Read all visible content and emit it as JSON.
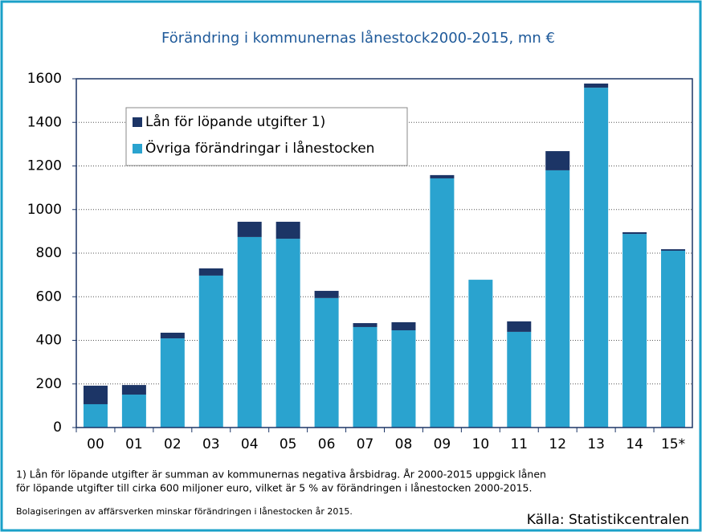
{
  "chart_data": {
    "type": "stacked_bar",
    "title": "Förändring i kommunernas lånestock2000-2015, mn €",
    "categories": [
      "00",
      "01",
      "02",
      "03",
      "04",
      "05",
      "06",
      "07",
      "08",
      "09",
      "10",
      "11",
      "12",
      "13",
      "14",
      "15*"
    ],
    "series": [
      {
        "name": "Lån för löpande utgifter 1)",
        "color": "#1c3566",
        "values": [
          85,
          44,
          26,
          33,
          70,
          78,
          33,
          18,
          37,
          15,
          0,
          48,
          88,
          19,
          8,
          7
        ]
      },
      {
        "name": "Övriga förändringar i lånestocken",
        "color": "#2aa3cf",
        "values": [
          107,
          151,
          409,
          697,
          874,
          866,
          594,
          461,
          446,
          1143,
          678,
          439,
          1180,
          1559,
          888,
          811
        ]
      }
    ],
    "ylim": [
      0,
      1600
    ],
    "yticks": [
      0,
      200,
      400,
      600,
      800,
      1000,
      1200,
      1400,
      1600
    ],
    "grid": true,
    "legend": "upper left",
    "notes": [
      "1) Lån för löpande utgifter är summan av kommunernas negativa årsbidrag. År 2000-2015 uppgick lånen",
      "för löpande utgifter till cirka 600 miljoner euro, vilket är 5 % av förändringen i lånestocken 2000-2015.",
      "Bolagiseringen av affärsverken minskar förändringen i lånestocken år 2015."
    ],
    "source": "Källa: Statistikcentralen"
  }
}
